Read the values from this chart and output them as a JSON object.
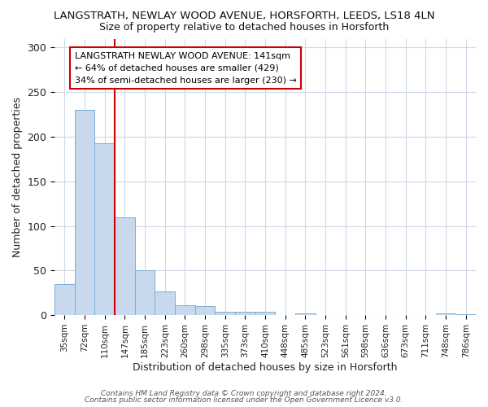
{
  "title1": "LANGSTRATH, NEWLAY WOOD AVENUE, HORSFORTH, LEEDS, LS18 4LN",
  "title2": "Size of property relative to detached houses in Horsforth",
  "xlabel": "Distribution of detached houses by size in Horsforth",
  "ylabel": "Number of detached properties",
  "bar_labels": [
    "35sqm",
    "72sqm",
    "110sqm",
    "147sqm",
    "185sqm",
    "223sqm",
    "260sqm",
    "298sqm",
    "335sqm",
    "373sqm",
    "410sqm",
    "448sqm",
    "485sqm",
    "523sqm",
    "561sqm",
    "598sqm",
    "636sqm",
    "673sqm",
    "711sqm",
    "748sqm",
    "786sqm"
  ],
  "bar_values": [
    35,
    230,
    193,
    110,
    50,
    27,
    11,
    10,
    4,
    4,
    4,
    0,
    2,
    0,
    0,
    0,
    0,
    0,
    0,
    2,
    1
  ],
  "bar_color": "#c8d8ed",
  "bar_edge_color": "#7bafd4",
  "red_line_index": 3,
  "red_line_color": "#cc0000",
  "annotation_text": "LANGSTRATH NEWLAY WOOD AVENUE: 141sqm\n← 64% of detached houses are smaller (429)\n34% of semi-detached houses are larger (230) →",
  "annotation_box_color": "#ffffff",
  "annotation_box_edge": "#cc0000",
  "ylim": [
    0,
    310
  ],
  "yticks": [
    0,
    50,
    100,
    150,
    200,
    250,
    300
  ],
  "footer1": "Contains HM Land Registry data © Crown copyright and database right 2024.",
  "footer2": "Contains public sector information licensed under the Open Government Licence v3.0.",
  "bg_color": "#ffffff",
  "plot_bg_color": "#ffffff",
  "grid_color": "#d0d8e8"
}
